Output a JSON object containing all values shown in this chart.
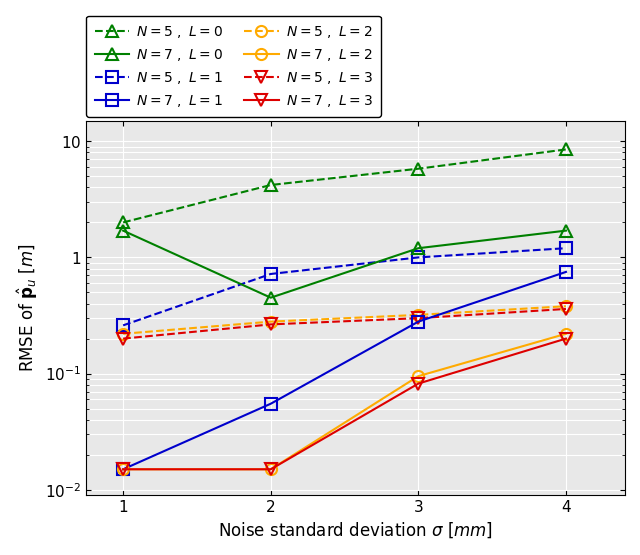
{
  "x": [
    1,
    2,
    3,
    4
  ],
  "series": [
    {
      "label": "$N = 5\\;,\\; L = 0$",
      "color": "#008000",
      "linestyle": "--",
      "marker": "^",
      "markerfacecolor": "none",
      "N": 5,
      "L": 0,
      "y": [
        2.0,
        4.2,
        5.8,
        8.5
      ]
    },
    {
      "label": "$N = 5\\;,\\; L = 1$",
      "color": "#0000cc",
      "linestyle": "--",
      "marker": "s",
      "markerfacecolor": "none",
      "N": 5,
      "L": 1,
      "y": [
        0.26,
        0.72,
        1.0,
        1.2
      ]
    },
    {
      "label": "$N = 5\\;,\\; L = 2$",
      "color": "#ffaa00",
      "linestyle": "--",
      "marker": "o",
      "markerfacecolor": "none",
      "N": 5,
      "L": 2,
      "y": [
        0.22,
        0.28,
        0.32,
        0.38
      ]
    },
    {
      "label": "$N = 5\\;,\\; L = 3$",
      "color": "#dd0000",
      "linestyle": "--",
      "marker": "v",
      "markerfacecolor": "none",
      "N": 5,
      "L": 3,
      "y": [
        0.2,
        0.265,
        0.3,
        0.36
      ]
    },
    {
      "label": "$N = 7\\;,\\; L = 0$",
      "color": "#008000",
      "linestyle": "-",
      "marker": "^",
      "markerfacecolor": "none",
      "N": 7,
      "L": 0,
      "y": [
        1.7,
        0.45,
        1.2,
        1.7
      ]
    },
    {
      "label": "$N = 7\\;,\\; L = 1$",
      "color": "#0000cc",
      "linestyle": "-",
      "marker": "s",
      "markerfacecolor": "none",
      "N": 7,
      "L": 1,
      "y": [
        0.015,
        0.055,
        0.28,
        0.75
      ]
    },
    {
      "label": "$N = 7\\;,\\; L = 2$",
      "color": "#ffaa00",
      "linestyle": "-",
      "marker": "o",
      "markerfacecolor": "none",
      "N": 7,
      "L": 2,
      "y": [
        0.015,
        0.015,
        0.095,
        0.22
      ]
    },
    {
      "label": "$N = 7\\;,\\; L = 3$",
      "color": "#dd0000",
      "linestyle": "-",
      "marker": "v",
      "markerfacecolor": "none",
      "N": 7,
      "L": 3,
      "y": [
        0.015,
        0.015,
        0.082,
        0.2
      ]
    }
  ],
  "xlabel": "Noise standard deviation $\\sigma$ $[mm]$",
  "ylabel": "RMSE of $\\hat{\\mathbf{p}}_u$ $[m]$",
  "xlim": [
    0.75,
    4.4
  ],
  "ylim": [
    0.009,
    15
  ],
  "xticks": [
    1,
    2,
    3,
    4
  ],
  "background_color": "#e8e8e8",
  "grid_color": "white",
  "figsize": [
    6.4,
    5.55
  ],
  "dpi": 100,
  "legend_ncol": 2,
  "legend_fontsize": 10,
  "axis_fontsize": 12
}
